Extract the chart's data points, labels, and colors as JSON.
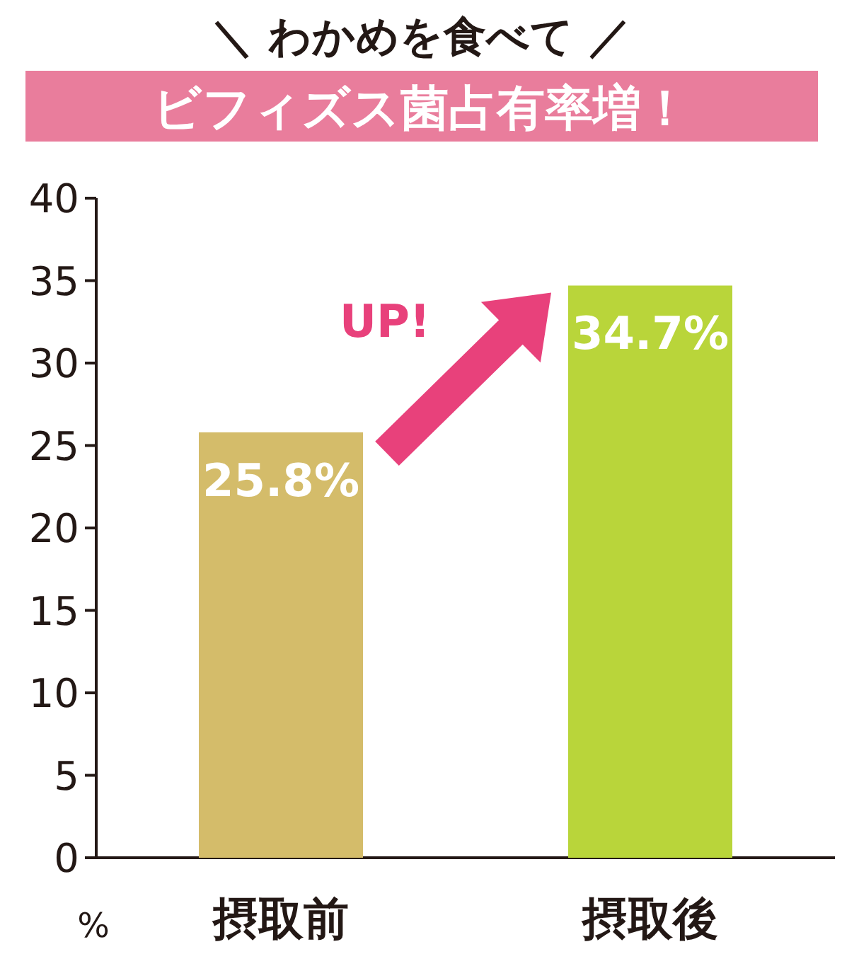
{
  "chart_data": {
    "type": "bar",
    "title": "＼ わかめを食べて ／",
    "subtitle": "ビフィズス菌占有率増！",
    "ylabel": "%",
    "categories": [
      "摂取前",
      "摂取後"
    ],
    "values": [
      25.8,
      34.7
    ],
    "colors": [
      "#d4bc6a",
      "#b9d53a"
    ],
    "value_labels": [
      "25.8%",
      "34.7%"
    ],
    "ylim": [
      0,
      40
    ],
    "yticks": [
      0,
      5,
      10,
      15,
      20,
      25,
      30,
      35,
      40
    ],
    "grid": false,
    "annotations": [
      "UP!"
    ]
  }
}
